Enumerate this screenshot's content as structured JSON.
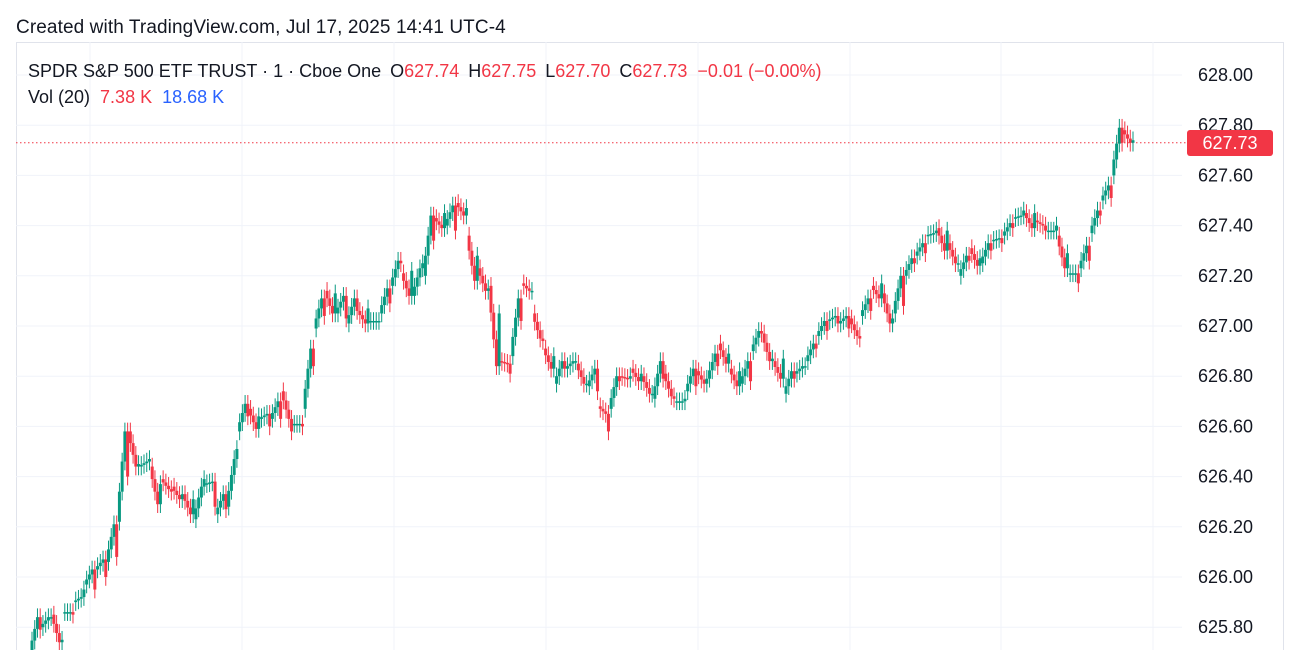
{
  "caption": "Created with TradingView.com, Jul 17, 2025 14:41 UTC-4",
  "legend": {
    "symbol": "SPDR S&P 500 ETF TRUST · 1 · Cboe One",
    "o_key": "O",
    "o_val": "627.74",
    "h_key": "H",
    "h_val": "627.75",
    "l_key": "L",
    "l_val": "627.70",
    "c_key": "C",
    "c_val": "627.73",
    "change": "−0.01 (−0.00%)",
    "vol_label": "Vol (20)",
    "vol_value": "7.38 K",
    "vol_ma": "18.68 K"
  },
  "price_axis": [
    "628.00",
    "627.80",
    "627.60",
    "627.40",
    "627.20",
    "627.00",
    "626.80",
    "626.60",
    "626.40",
    "626.20",
    "626.00",
    "625.80"
  ],
  "last_price_label": "627.73",
  "colors": {
    "up": "#089981",
    "down": "#f23645",
    "volume_ma": "#2962ff",
    "grid": "#f0f3fa"
  },
  "chart_data": {
    "type": "candlestick",
    "ylim": [
      625.72,
      628.12
    ],
    "last_price": 627.73,
    "points": [
      [
        625.7,
        625.79,
        625.84
      ],
      [
        625.8,
        625.84,
        625.84
      ],
      [
        625.85,
        625.75,
        625.74
      ],
      [
        625.86,
        625.85,
        625.86
      ],
      [
        625.9,
        625.95,
        625.92
      ],
      [
        625.97,
        625.95,
        626.03
      ],
      [
        626.03,
        626.0,
        626.07
      ],
      [
        626.06,
        626.08,
        626.21
      ],
      [
        626.22,
        626.4,
        626.58
      ],
      [
        626.58,
        626.45,
        626.44
      ],
      [
        626.44,
        626.47,
        626.46
      ],
      [
        626.44,
        626.37,
        626.29
      ],
      [
        626.39,
        626.34,
        626.35
      ],
      [
        626.36,
        626.33,
        626.31
      ],
      [
        626.33,
        626.31,
        626.25
      ],
      [
        626.23,
        626.39,
        626.36
      ],
      [
        626.37,
        626.28,
        626.38
      ],
      [
        626.25,
        626.27,
        626.33
      ],
      [
        626.28,
        626.51,
        626.47
      ],
      [
        626.58,
        626.64,
        626.69
      ],
      [
        626.67,
        626.64,
        626.59
      ],
      [
        626.63,
        626.6,
        626.65
      ],
      [
        626.63,
        626.63,
        626.7
      ],
      [
        626.74,
        626.58,
        626.63
      ],
      [
        626.61,
        626.6,
        626.61
      ],
      [
        626.67,
        626.84,
        626.91
      ],
      [
        626.99,
        627.04,
        627.11
      ],
      [
        627.14,
        627.13,
        627.05
      ],
      [
        627.05,
        627.03,
        627.12
      ],
      [
        627.01,
        627.06,
        627.11
      ],
      [
        627.06,
        627.07,
        627.01
      ],
      [
        627.02,
        627.02,
        627.02
      ],
      [
        627.05,
        627.09,
        627.15
      ],
      [
        627.16,
        627.25,
        627.26
      ],
      [
        627.21,
        627.22,
        627.12
      ],
      [
        627.12,
        627.25,
        627.23
      ],
      [
        627.2,
        627.34,
        627.44
      ],
      [
        627.43,
        627.45,
        627.39
      ],
      [
        627.4,
        627.38,
        627.48
      ],
      [
        627.49,
        627.47,
        627.44
      ],
      [
        627.36,
        627.28,
        627.18
      ],
      [
        627.23,
        627.15,
        627.14
      ],
      [
        627.16,
        627.05,
        626.84
      ],
      [
        626.86,
        626.81,
        626.85
      ],
      [
        626.88,
        627.02,
        627.11
      ],
      [
        627.17,
        627.14,
        627.14
      ],
      [
        627.05,
        626.94,
        626.95
      ],
      [
        626.91,
        626.88,
        626.83
      ],
      [
        626.77,
        626.83,
        626.86
      ],
      [
        626.83,
        626.86,
        626.86
      ],
      [
        626.85,
        626.77,
        626.77
      ],
      [
        626.76,
        626.74,
        626.83
      ],
      [
        626.68,
        626.58,
        626.65
      ],
      [
        626.67,
        626.78,
        626.8
      ],
      [
        626.8,
        626.8,
        626.79
      ],
      [
        626.83,
        626.81,
        626.78
      ],
      [
        626.8,
        626.73,
        626.73
      ],
      [
        626.71,
        626.79,
        626.86
      ],
      [
        626.81,
        626.71,
        626.72
      ],
      [
        626.7,
        626.71,
        626.7
      ],
      [
        626.74,
        626.76,
        626.83
      ],
      [
        626.82,
        626.79,
        626.77
      ],
      [
        626.79,
        626.84,
        626.89
      ],
      [
        626.93,
        626.89,
        626.85
      ],
      [
        626.83,
        626.82,
        626.76
      ],
      [
        626.77,
        626.78,
        626.86
      ],
      [
        626.9,
        626.97,
        626.98
      ],
      [
        626.97,
        626.87,
        626.86
      ],
      [
        626.86,
        626.87,
        626.79
      ],
      [
        626.73,
        626.79,
        626.82
      ],
      [
        626.81,
        626.84,
        626.84
      ],
      [
        626.86,
        626.91,
        626.93
      ],
      [
        626.96,
        626.98,
        627.02
      ],
      [
        627.02,
        627.01,
        627.04
      ],
      [
        627.01,
        626.99,
        627.04
      ],
      [
        627.03,
        626.95,
        626.96
      ],
      [
        627.04,
        627.06,
        627.11
      ],
      [
        627.16,
        627.17,
        627.11
      ],
      [
        627.13,
        627.03,
        627.01
      ],
      [
        627.05,
        627.08,
        627.2
      ],
      [
        627.2,
        627.25,
        627.27
      ],
      [
        627.28,
        627.29,
        627.33
      ],
      [
        627.36,
        627.38,
        627.37
      ],
      [
        627.39,
        627.38,
        627.3
      ],
      [
        627.33,
        627.25,
        627.25
      ],
      [
        627.2,
        627.26,
        627.28
      ],
      [
        627.31,
        627.27,
        627.24
      ],
      [
        627.25,
        627.3,
        627.33
      ],
      [
        627.34,
        627.33,
        627.35
      ],
      [
        627.36,
        627.39,
        627.41
      ],
      [
        627.43,
        627.46,
        627.44
      ],
      [
        627.45,
        627.45,
        627.39
      ],
      [
        627.42,
        627.38,
        627.4
      ],
      [
        627.38,
        627.4,
        627.38
      ],
      [
        627.36,
        627.29,
        627.23
      ],
      [
        627.21,
        627.17,
        627.21
      ],
      [
        627.23,
        627.26,
        627.32
      ],
      [
        627.37,
        627.44,
        627.46
      ],
      [
        627.5,
        627.51,
        627.56
      ],
      [
        627.6,
        627.73,
        627.79
      ],
      [
        627.78,
        627.74,
        627.73
      ]
    ]
  }
}
